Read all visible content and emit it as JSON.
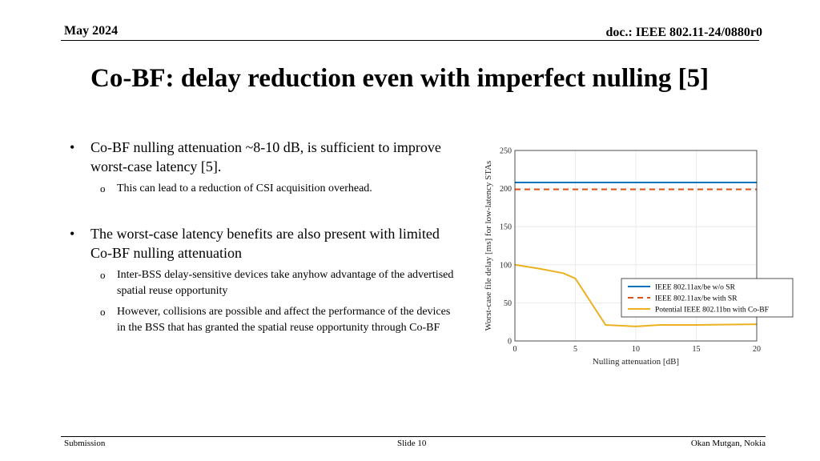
{
  "header": {
    "date": "May 2024",
    "doc_id": "doc.: IEEE 802.11-24/0880r0"
  },
  "slide": {
    "title": "Co-BF: delay reduction even with imperfect nulling [5]"
  },
  "bullets": [
    {
      "text": "Co-BF nulling attenuation ~8-10 dB, is sufficient to improve worst-case latency [5].",
      "subs": [
        "This can lead to a reduction of CSI acquisition overhead."
      ]
    },
    {
      "text": "The worst-case latency benefits are also present with limited Co-BF nulling attenuation",
      "subs": [
        "Inter-BSS delay-sensitive devices take anyhow advantage of the advertised spatial reuse opportunity",
        "However, collisions are possible and affect the performance of the devices in the BSS that has granted the spatial reuse opportunity through Co-BF"
      ]
    }
  ],
  "bullet_symbol": "•",
  "sub_bullet_symbol": "o",
  "chart_data": {
    "type": "line",
    "xlabel": "Nulling attenuation [dB]",
    "ylabel": "Worst-case file delay [ms] for low-latency STAs",
    "xlim": [
      0,
      20
    ],
    "ylim": [
      0,
      250
    ],
    "xticks": [
      0,
      5,
      10,
      15,
      20
    ],
    "yticks": [
      0,
      50,
      100,
      150,
      200,
      250
    ],
    "grid": true,
    "legend_position": "right",
    "series": [
      {
        "name": "IEEE 802.11ax/be w/o SR",
        "color": "#0072BD",
        "style": "solid",
        "x": [
          0,
          20
        ],
        "y": [
          208,
          208
        ]
      },
      {
        "name": "IEEE 802.11ax/be with SR",
        "color": "#D95319",
        "style": "dashed",
        "x": [
          0,
          20
        ],
        "y": [
          199,
          199
        ]
      },
      {
        "name": "Potential IEEE 802.11bn with Co-BF",
        "color": "#EDB120",
        "style": "solid",
        "x": [
          0,
          2,
          4,
          5,
          7.5,
          10,
          12,
          15,
          20
        ],
        "y": [
          100,
          95,
          89,
          82,
          21,
          19,
          21,
          21,
          22
        ]
      }
    ]
  },
  "footer": {
    "left": "Submission",
    "center": "Slide 10",
    "right": "Okan Mutgan, Nokia"
  }
}
